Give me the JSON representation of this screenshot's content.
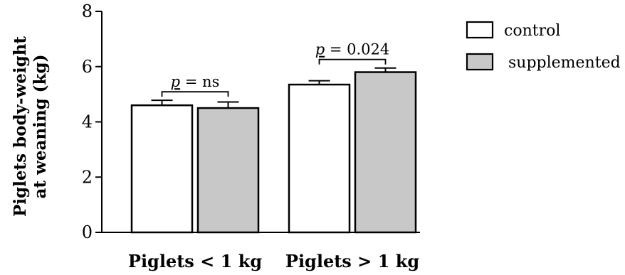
{
  "chart_data": {
    "type": "bar",
    "title": "",
    "xlabel": "",
    "ylabel_lines": [
      "Piglets body-weight",
      "at weaning (kg)"
    ],
    "ylim": [
      0,
      8
    ],
    "yticks": [
      0,
      2,
      4,
      6,
      8
    ],
    "categories": [
      "Piglets < 1 kg",
      "Piglets > 1 kg"
    ],
    "series": [
      {
        "name": "control",
        "color": "#ffffff",
        "values": [
          4.6,
          5.35
        ],
        "errors": [
          0.18,
          0.14
        ]
      },
      {
        "name": "supplemented",
        "color": "#c8c8c8",
        "values": [
          4.5,
          5.8
        ],
        "errors": [
          0.22,
          0.15
        ]
      }
    ],
    "annotations": [
      {
        "category": 0,
        "p_label": "p",
        "p_value": "= ns"
      },
      {
        "category": 1,
        "p_label": "p",
        "p_value": "= 0.024"
      }
    ],
    "legend_position": "top-right",
    "grid": false
  }
}
